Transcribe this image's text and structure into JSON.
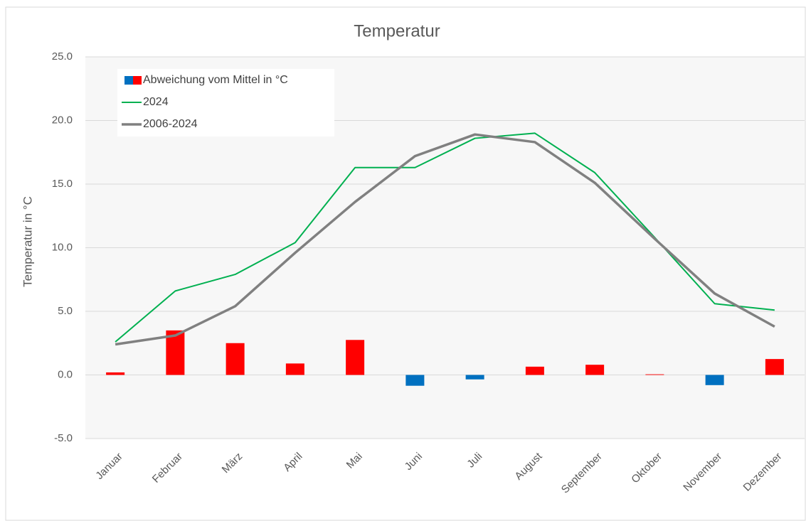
{
  "chart_data": {
    "type": "bar_line",
    "title": "Temperatur",
    "y_label": "Temperatur in °C",
    "categories": [
      "Januar",
      "Februar",
      "März",
      "April",
      "Mai",
      "Juni",
      "Juli",
      "August",
      "September",
      "Oktober",
      "November",
      "Dezember"
    ],
    "series": [
      {
        "name": "Abweichung vom Mittel in °C",
        "type": "bar",
        "color": "#ff0000",
        "negative_color": "#0070c0",
        "values": [
          0.2,
          3.5,
          2.5,
          0.9,
          2.75,
          -0.85,
          -0.35,
          0.65,
          0.8,
          0.05,
          -0.8,
          1.25
        ]
      },
      {
        "name": "2024",
        "type": "line",
        "color": "#00b050",
        "values": [
          2.6,
          6.6,
          7.9,
          10.4,
          16.3,
          16.3,
          18.6,
          19.0,
          15.9,
          10.8,
          5.6,
          5.1
        ]
      },
      {
        "name": "2006-2024",
        "type": "line",
        "color": "#808080",
        "values": [
          2.4,
          3.1,
          5.4,
          9.6,
          13.6,
          17.2,
          18.9,
          18.3,
          15.1,
          10.7,
          6.4,
          3.8
        ]
      }
    ],
    "ylim": [
      -5,
      25
    ],
    "yticks": [
      {
        "value": -5,
        "label": "-5.0"
      },
      {
        "value": 0,
        "label": "0.0"
      },
      {
        "value": 5,
        "label": "5.0"
      },
      {
        "value": 10,
        "label": "10.0"
      },
      {
        "value": 15,
        "label": "15.0"
      },
      {
        "value": 20,
        "label": "20.0"
      },
      {
        "value": 25,
        "label": "25.0"
      }
    ],
    "grid": true,
    "legend": "upper-left"
  }
}
